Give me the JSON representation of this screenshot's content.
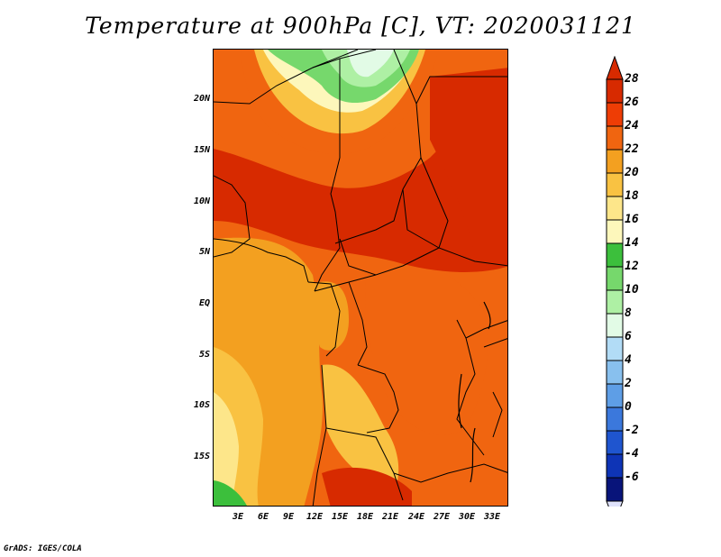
{
  "title": "Temperature at 900hPa [C], VT: 2020031121",
  "latitude_labels": [
    "20N",
    "15N",
    "10N",
    "5N",
    "EQ",
    "5S",
    "10S",
    "15S"
  ],
  "longitude_labels": [
    "3E",
    "6E",
    "9E",
    "12E",
    "15E",
    "18E",
    "21E",
    "24E",
    "27E",
    "30E",
    "33E"
  ],
  "colorbar": {
    "levels": [
      "28",
      "26",
      "24",
      "22",
      "20",
      "18",
      "16",
      "14",
      "12",
      "10",
      "8",
      "6",
      "4",
      "2",
      "0",
      "-2",
      "-4",
      "-6"
    ],
    "colors": [
      "#d72a00",
      "#ee3d05",
      "#f06510",
      "#f3a020",
      "#f9c242",
      "#fde68a",
      "#fdf7bb",
      "#3cbf3c",
      "#76d86c",
      "#aef0a4",
      "#e2fbe6",
      "#b2dcf6",
      "#88c0ee",
      "#5e9ee6",
      "#3b78dc",
      "#1f55cf",
      "#0e34b6",
      "#08147a"
    ],
    "top_color": "#d72a00",
    "bottom_color": "#dfe2fb"
  },
  "credit": "GrADS: IGES/COLA"
}
